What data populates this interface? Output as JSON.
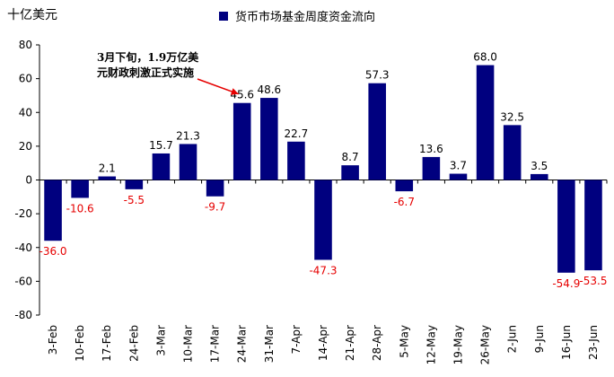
{
  "unit_label": "十亿美元",
  "legend_label": "货币市场基金周度资金流向",
  "annotation": {
    "line1": "3月下旬，1.9万亿美",
    "line2": "元财政刺激正式实施"
  },
  "colors": {
    "bar": "#00007f",
    "positive_label": "#000000",
    "negative_label": "#e60000",
    "arrow": "#e60000"
  },
  "chart_data": {
    "type": "bar",
    "title": "",
    "xlabel": "",
    "ylabel": "十亿美元",
    "ylim": [
      -80,
      80
    ],
    "yticks": [
      80,
      60,
      40,
      20,
      0,
      -20,
      -40,
      -60,
      -80
    ],
    "grid": false,
    "legend_position": "top",
    "categories": [
      "3-Feb",
      "10-Feb",
      "17-Feb",
      "24-Feb",
      "3-Mar",
      "10-Mar",
      "17-Mar",
      "24-Mar",
      "31-Mar",
      "7-Apr",
      "14-Apr",
      "21-Apr",
      "28-Apr",
      "5-May",
      "12-May",
      "19-May",
      "26-May",
      "2-Jun",
      "9-Jun",
      "16-Jun",
      "23-Jun"
    ],
    "series": [
      {
        "name": "货币市场基金周度资金流向",
        "values": [
          -36.0,
          -10.6,
          2.1,
          -5.5,
          15.7,
          21.3,
          -9.7,
          45.6,
          48.6,
          22.7,
          -47.3,
          8.7,
          57.3,
          -6.7,
          13.6,
          3.7,
          68.0,
          32.5,
          3.5,
          -54.9,
          -53.5
        ]
      }
    ],
    "data_labels": [
      "-36.0",
      "-10.6",
      "2.1",
      "-5.5",
      "15.7",
      "21.3",
      "-9.7",
      "45.6",
      "48.6",
      "22.7",
      "-47.3",
      "8.7",
      "57.3",
      "-6.7",
      "13.6",
      "3.7",
      "68.0",
      "32.5",
      "3.5",
      "-54.9",
      "-53.5"
    ],
    "annotation_target_category": "24-Mar"
  }
}
